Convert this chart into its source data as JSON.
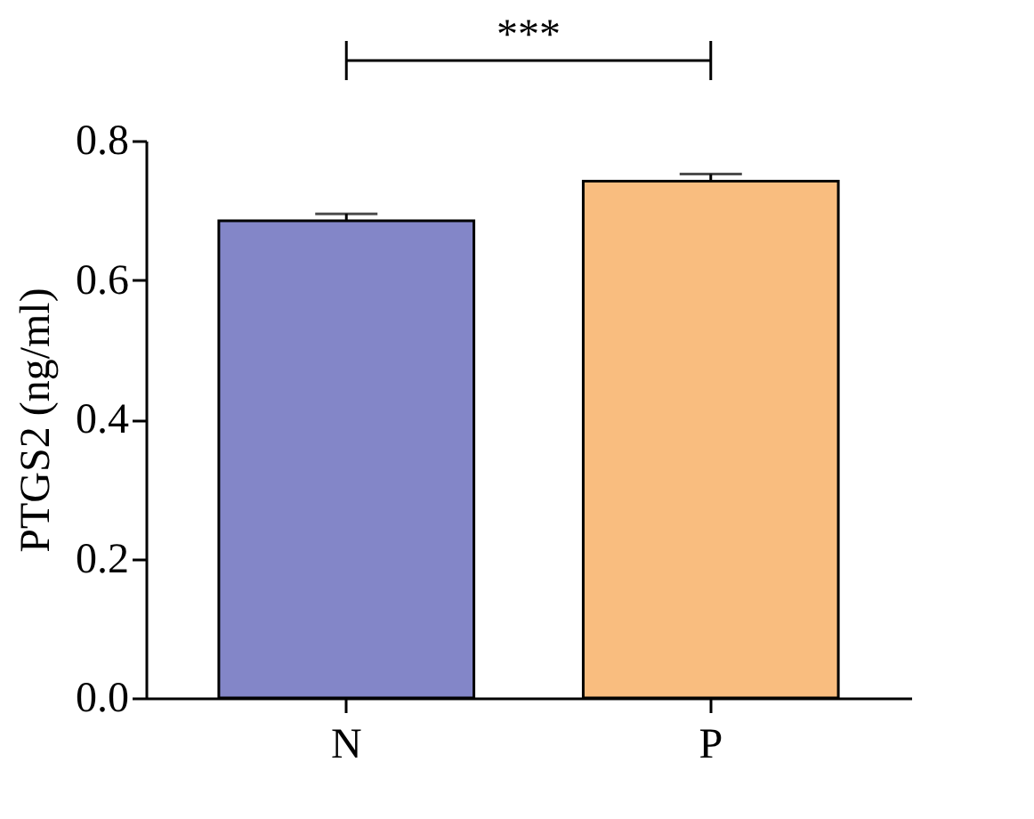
{
  "chart_data": {
    "type": "bar",
    "ylabel": "PTGS2 (ng/ml)",
    "categories": [
      "N",
      "P"
    ],
    "values": [
      0.685,
      0.742
    ],
    "errors": [
      0.01,
      0.01
    ],
    "colors": [
      "#8386c8",
      "#f9bd7f"
    ],
    "ylim": [
      0,
      0.8
    ],
    "yticks": [
      {
        "value": 0,
        "label": "0.0"
      },
      0.2,
      0.4,
      0.6,
      0.8
    ],
    "annotations": [
      "***"
    ],
    "grid": false
  }
}
